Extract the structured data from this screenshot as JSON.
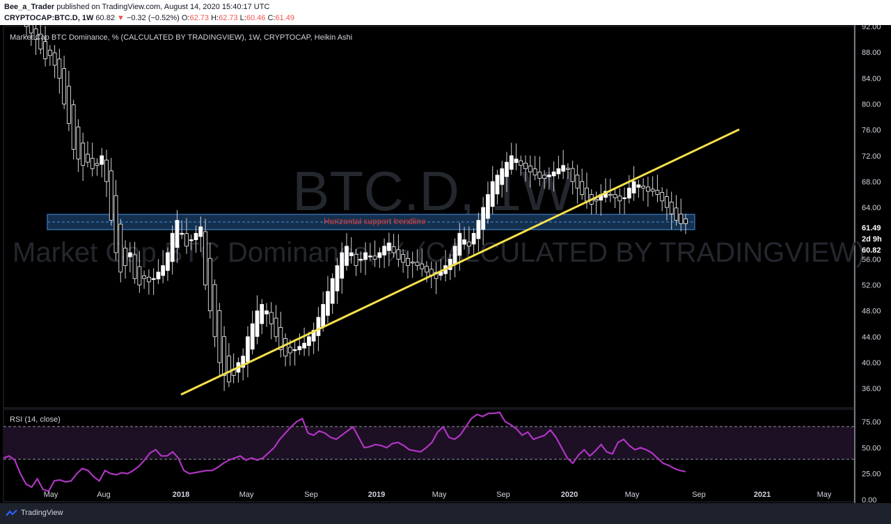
{
  "header": {
    "author": "Bee_a_Trader",
    "published_text": "published on TradingView.com, August 14, 2020 15:40:17 UTC",
    "symbol": "CRYPTOCAP:BTC.D, 1W",
    "last": "60.82",
    "change_arrow": "▼",
    "change": "−0.32 (−0.52%)",
    "o_label": "O:",
    "o_value": "62.73",
    "h_label": "H:",
    "h_value": "62.73",
    "l_label": "L:",
    "l_value": "60.46",
    "c_label": "C:",
    "c_value": "61.49"
  },
  "chart": {
    "legend": "Market Cap BTC Dominance, % (CALCULATED BY TRADINGVIEW), 1W, CRYPTOCAP, Heikin Ashi",
    "watermark_symbol": "BTC.D, 1W",
    "watermark_name": "Market Cap BTC Dominance, % (CALCULATED BY TRADINGVIEW)",
    "annotation": "Horizontal support trendline",
    "price_tag_1": "61.49",
    "price_tag_2": "2d 9h",
    "price_tag_3": "60.82",
    "rsi_label": "RSI (14, close)"
  },
  "footer": {
    "brand": "TradingView"
  },
  "colors": {
    "up": "#ffffff",
    "down": "#000000",
    "trendline": "#f5e14b",
    "zone": "#1a3a5c",
    "rsi": "#b035c4",
    "annotation": "#e53935"
  },
  "chart_data": [
    {
      "type": "candlestick",
      "title": "Market Cap BTC Dominance, % (CALCULATED BY TRADINGVIEW), 1W, CRYPTOCAP, Heikin Ashi",
      "x_ticks": [
        "May",
        "Aug",
        "2018",
        "May",
        "Sep",
        "2019",
        "May",
        "Sep",
        "2020",
        "May",
        "Sep",
        "2021",
        "May"
      ],
      "y_ticks": [
        36,
        40,
        44,
        48,
        52,
        56,
        60.82,
        61.49,
        64,
        68,
        72,
        76,
        80,
        84,
        88,
        92
      ],
      "ylim": [
        33,
        92
      ],
      "close_series": [
        92,
        91,
        90,
        88.5,
        87,
        87.5,
        86,
        84,
        80,
        77,
        73,
        71.5,
        70.5,
        71,
        70,
        70.5,
        72,
        68,
        62,
        57,
        54,
        55,
        57,
        53,
        52,
        53,
        52.5,
        53,
        54,
        55,
        57,
        60,
        62,
        60,
        58,
        59,
        60,
        61,
        52,
        48,
        44,
        40,
        38,
        37,
        38,
        40,
        41,
        44,
        46,
        48,
        49,
        48,
        46,
        44,
        42,
        41,
        41.5,
        42,
        42.5,
        43,
        44,
        45,
        47,
        49,
        51,
        53,
        55,
        57,
        58,
        57,
        55,
        56,
        57,
        56.5,
        56,
        57,
        58,
        58.5,
        57,
        56,
        55.5,
        55,
        55.5,
        55,
        54.5,
        54,
        53.5,
        53,
        54,
        55,
        56,
        58,
        60,
        59,
        58,
        60,
        62,
        64,
        66,
        68,
        69,
        70,
        71,
        72,
        71.5,
        70.5,
        70,
        69.5,
        69,
        68.5,
        68.5,
        69,
        69.5,
        70,
        70.5,
        70,
        68,
        67,
        66,
        65,
        64.5,
        65,
        66,
        66.5,
        66,
        65.5,
        65,
        65.5,
        67,
        68,
        67.5,
        67,
        66.5,
        66.5,
        66,
        65,
        64,
        63,
        62,
        61.5,
        61.49
      ],
      "annotations": [
        "Horizontal support trendline"
      ],
      "horizontal_zone": [
        61.8,
        63.8
      ],
      "rising_trendline": {
        "from": [
          "2018",
          35.5
        ],
        "to": [
          "2021",
          76.5
        ]
      }
    },
    {
      "type": "line",
      "title": "RSI (14, close)",
      "y_ticks": [
        0,
        25,
        50,
        75
      ],
      "ylim": [
        0,
        85
      ],
      "bands": [
        30,
        70
      ],
      "values": [
        40,
        42,
        38,
        25,
        15,
        12,
        20,
        10,
        8,
        18,
        19,
        17,
        18,
        25,
        30,
        28,
        22,
        18,
        28,
        25,
        24,
        26,
        25,
        28,
        32,
        38,
        45,
        48,
        42,
        42,
        46,
        40,
        28,
        25,
        26,
        27,
        28,
        28,
        31,
        35,
        38,
        40,
        42,
        38,
        40,
        38,
        40,
        45,
        50,
        58,
        64,
        70,
        75,
        78,
        64,
        62,
        66,
        64,
        60,
        58,
        62,
        66,
        70,
        60,
        50,
        51,
        53,
        52,
        50,
        54,
        55,
        52,
        48,
        47,
        46,
        50,
        55,
        65,
        70,
        60,
        58,
        62,
        70,
        78,
        82,
        80,
        83,
        83,
        84,
        75,
        72,
        68,
        62,
        65,
        58,
        60,
        62,
        67,
        60,
        50,
        40,
        35,
        43,
        48,
        42,
        47,
        53,
        46,
        44,
        55,
        58,
        52,
        48,
        50,
        48,
        45,
        40,
        35,
        33,
        30,
        28,
        27
      ]
    }
  ]
}
